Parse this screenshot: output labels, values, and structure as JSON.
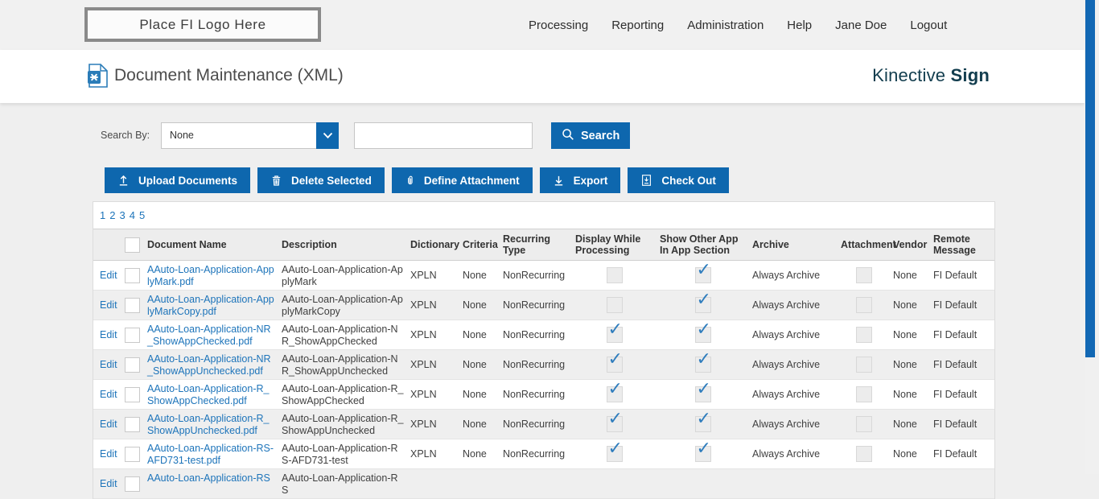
{
  "colors": {
    "accent_blue": "#0e67ae",
    "link_blue": "#1d74ba",
    "brand_teal": "#123d4e",
    "scrollbar_thumb": "#1268b4",
    "check_blue": "#2f7dbd"
  },
  "topbar": {
    "logo_placeholder": "Place FI Logo Here",
    "nav": [
      "Processing",
      "Reporting",
      "Administration",
      "Help",
      "Jane Doe",
      "Logout"
    ]
  },
  "header": {
    "title": "Document Maintenance (XML)",
    "brand_regular": "Kinective ",
    "brand_bold": "Sign"
  },
  "search": {
    "label": "Search By:",
    "dropdown_value": "None",
    "input_value": "",
    "button_label": "Search"
  },
  "toolbar": {
    "buttons": [
      {
        "label": "Upload Documents",
        "icon": "upload-icon"
      },
      {
        "label": "Delete Selected",
        "icon": "trash-icon"
      },
      {
        "label": "Define Attachment",
        "icon": "paperclip-icon"
      },
      {
        "label": "Export",
        "icon": "download-icon"
      },
      {
        "label": "Check Out",
        "icon": "checkout-icon"
      }
    ]
  },
  "pagination": {
    "pages": [
      "1",
      "2",
      "3",
      "4",
      "5"
    ]
  },
  "table": {
    "edit_label": "Edit",
    "columns": [
      "Document Name",
      "Description",
      "Dictionary",
      "Criteria",
      "Recurring Type",
      "Display While Processing",
      "Show Other App In App Section",
      "Archive",
      "Attachment",
      "Vendor",
      "Remote Message"
    ],
    "rows": [
      {
        "name": "AAuto-Loan-Application-ApplyMark.pdf",
        "description": "AAuto-Loan-Application-ApplyMark",
        "dictionary": "XPLN",
        "criteria": "None",
        "recurring_type": "NonRecurring",
        "display_while_processing": false,
        "show_other_app": true,
        "archive": "Always Archive",
        "attachment": false,
        "vendor": "None",
        "remote_message": "FI Default"
      },
      {
        "name": "AAuto-Loan-Application-ApplyMarkCopy.pdf",
        "description": "AAuto-Loan-Application-ApplyMarkCopy",
        "dictionary": "XPLN",
        "criteria": "None",
        "recurring_type": "NonRecurring",
        "display_while_processing": false,
        "show_other_app": true,
        "archive": "Always Archive",
        "attachment": false,
        "vendor": "None",
        "remote_message": "FI Default"
      },
      {
        "name": "AAuto-Loan-Application-NR_ShowAppChecked.pdf",
        "description": "AAuto-Loan-Application-NR_ShowAppChecked",
        "dictionary": "XPLN",
        "criteria": "None",
        "recurring_type": "NonRecurring",
        "display_while_processing": true,
        "show_other_app": true,
        "archive": "Always Archive",
        "attachment": false,
        "vendor": "None",
        "remote_message": "FI Default"
      },
      {
        "name": "AAuto-Loan-Application-NR_ShowAppUnchecked.pdf",
        "description": "AAuto-Loan-Application-NR_ShowAppUnchecked",
        "dictionary": "XPLN",
        "criteria": "None",
        "recurring_type": "NonRecurring",
        "display_while_processing": true,
        "show_other_app": true,
        "archive": "Always Archive",
        "attachment": false,
        "vendor": "None",
        "remote_message": "FI Default"
      },
      {
        "name": "AAuto-Loan-Application-R_ShowAppChecked.pdf",
        "description": "AAuto-Loan-Application-R_ShowAppChecked",
        "dictionary": "XPLN",
        "criteria": "None",
        "recurring_type": "NonRecurring",
        "display_while_processing": true,
        "show_other_app": true,
        "archive": "Always Archive",
        "attachment": false,
        "vendor": "None",
        "remote_message": "FI Default"
      },
      {
        "name": "AAuto-Loan-Application-R_ShowAppUnchecked.pdf",
        "description": "AAuto-Loan-Application-R_ShowAppUnchecked",
        "dictionary": "XPLN",
        "criteria": "None",
        "recurring_type": "NonRecurring",
        "display_while_processing": true,
        "show_other_app": true,
        "archive": "Always Archive",
        "attachment": false,
        "vendor": "None",
        "remote_message": "FI Default"
      },
      {
        "name": "AAuto-Loan-Application-RS-AFD731-test.pdf",
        "description": "AAuto-Loan-Application-RS-AFD731-test",
        "dictionary": "XPLN",
        "criteria": "None",
        "recurring_type": "NonRecurring",
        "display_while_processing": true,
        "show_other_app": true,
        "archive": "Always Archive",
        "attachment": false,
        "vendor": "None",
        "remote_message": "FI Default"
      },
      {
        "name": "AAuto-Loan-Application-RS",
        "description": "AAuto-Loan-Application-RS",
        "dictionary": "",
        "criteria": "",
        "recurring_type": "",
        "display_while_processing": null,
        "show_other_app": null,
        "archive": "",
        "attachment": null,
        "vendor": "",
        "remote_message": "",
        "partial": true
      }
    ]
  }
}
